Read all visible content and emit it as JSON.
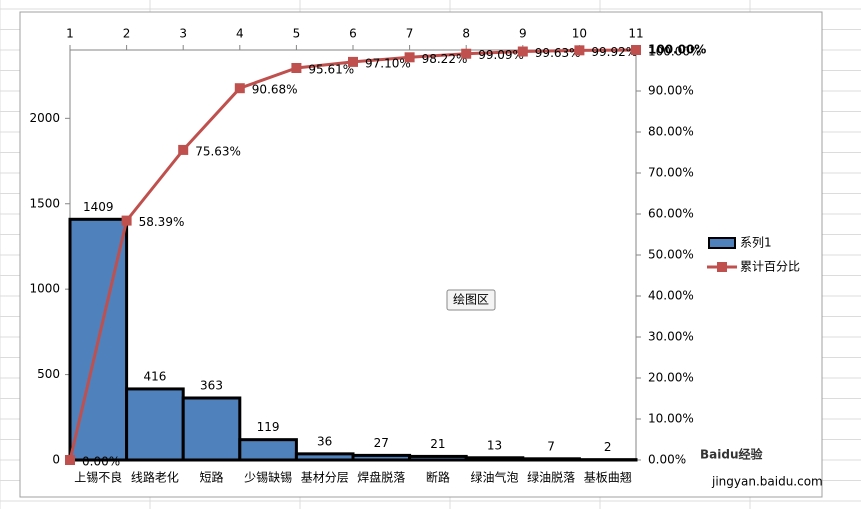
{
  "chart_data": {
    "type": "pareto",
    "categories": [
      "上锡不良",
      "线路老化",
      "短路",
      "少锡缺锡",
      "基材分层",
      "焊盘脱落",
      "断路",
      "绿油气泡",
      "绿油脱落",
      "基板曲翘"
    ],
    "ylim": [
      0,
      2400
    ],
    "yticks": [
      0,
      500,
      1000,
      1500,
      2000
    ],
    "x2lim": [
      1,
      11
    ],
    "x2ticks": [
      1,
      2,
      3,
      4,
      5,
      6,
      7,
      8,
      9,
      10,
      11
    ],
    "y2lim": [
      0,
      100
    ],
    "y2ticks": [
      {
        "value": 0,
        "label": "0.00%"
      },
      {
        "value": 10,
        "label": "10.00%"
      },
      {
        "value": 20,
        "label": "20.00%"
      },
      {
        "value": 30,
        "label": "30.00%"
      },
      {
        "value": 40,
        "label": "40.00%"
      },
      {
        "value": 50,
        "label": "50.00%"
      },
      {
        "value": 60,
        "label": "60.00%"
      },
      {
        "value": 70,
        "label": "70.00%"
      },
      {
        "value": 80,
        "label": "80.00%"
      },
      {
        "value": 90,
        "label": "90.00%"
      },
      {
        "value": 100,
        "label": "100.00%"
      }
    ],
    "series": [
      {
        "name": "系列1",
        "type": "bar",
        "color": "#4f81bd",
        "values": [
          1409,
          416,
          363,
          119,
          36,
          27,
          21,
          13,
          7,
          2
        ]
      },
      {
        "name": "累计百分比",
        "type": "line",
        "color": "#c0504d",
        "axis": "y2",
        "x": [
          1,
          2,
          3,
          4,
          5,
          6,
          7,
          8,
          9,
          10,
          11
        ],
        "values": [
          0,
          58.39,
          75.63,
          90.68,
          95.61,
          97.1,
          98.22,
          99.09,
          99.63,
          99.92,
          100
        ],
        "value_labels": [
          "0.00%",
          "58.39%",
          "75.63%",
          "90.68%",
          "95.61%",
          "97.10%",
          "98.22%",
          "99.09%",
          "99.63%",
          "99.92%",
          "100.00%"
        ]
      }
    ],
    "legend": "right",
    "annotation": "绘图区"
  },
  "watermark": {
    "brand": "Baidu经验",
    "url": "jingyan.baidu.com"
  }
}
